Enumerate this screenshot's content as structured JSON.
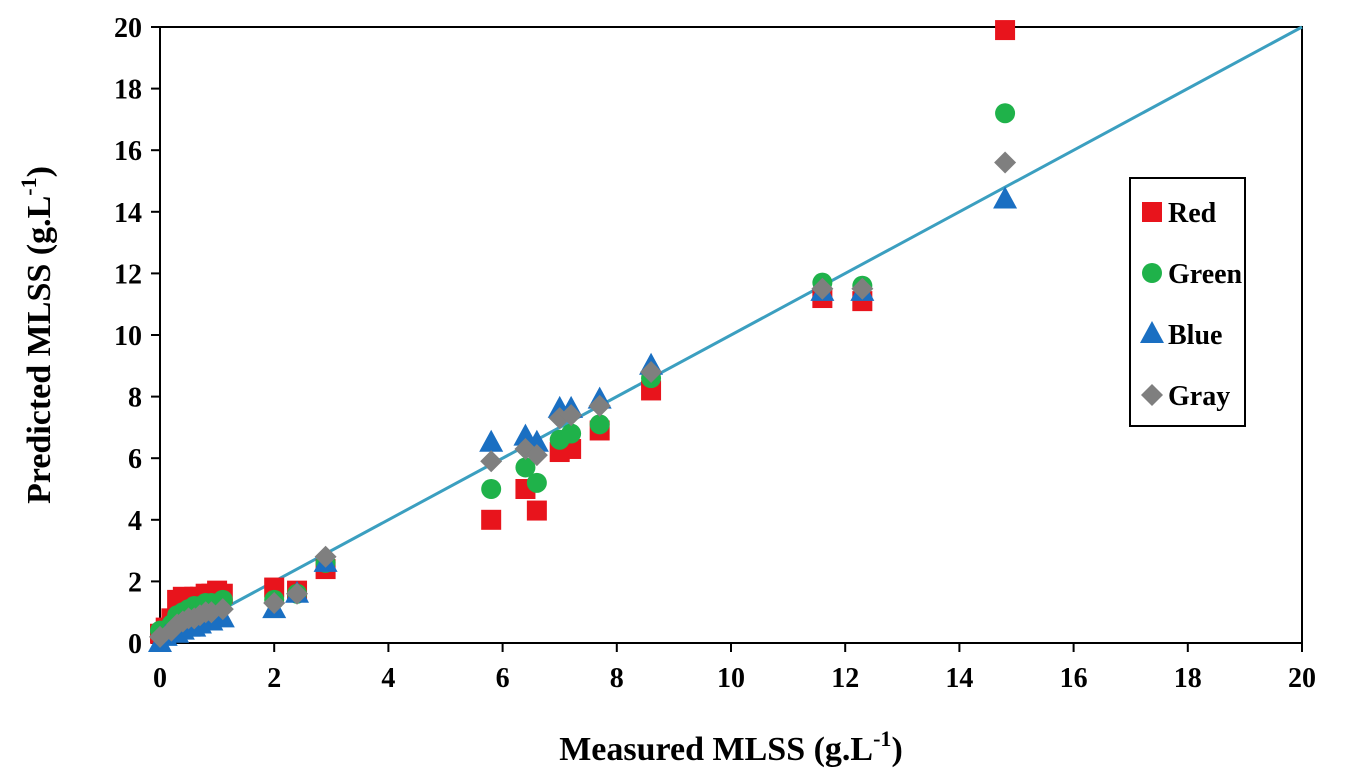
{
  "chart_data": {
    "type": "scatter",
    "title": "",
    "xlabel": "Measured MLSS (g.L",
    "ylabel": "Predicted MLSS (g.L",
    "unit_superscript": "-1",
    "unit_close": ")",
    "xlim": [
      0,
      20
    ],
    "ylim": [
      0,
      20
    ],
    "x_ticks": [
      0,
      2,
      4,
      6,
      8,
      10,
      12,
      14,
      16,
      18,
      20
    ],
    "y_ticks": [
      0,
      2,
      4,
      6,
      8,
      10,
      12,
      14,
      16,
      18,
      20
    ],
    "grid": false,
    "legend_position": "right",
    "reference_line": {
      "from": [
        0,
        0
      ],
      "to": [
        20,
        20
      ],
      "color": "#3b9fc0"
    },
    "series": [
      {
        "name": "Red",
        "marker": "square",
        "color": "#e8141c",
        "points": [
          [
            0.0,
            0.3
          ],
          [
            0.1,
            0.5
          ],
          [
            0.2,
            0.8
          ],
          [
            0.3,
            1.4
          ],
          [
            0.4,
            1.5
          ],
          [
            0.5,
            1.4
          ],
          [
            0.6,
            1.5
          ],
          [
            0.7,
            1.5
          ],
          [
            0.8,
            1.6
          ],
          [
            0.9,
            1.6
          ],
          [
            1.0,
            1.7
          ],
          [
            1.1,
            1.6
          ],
          [
            2.0,
            1.8
          ],
          [
            2.4,
            1.7
          ],
          [
            2.9,
            2.4
          ],
          [
            5.8,
            4.0
          ],
          [
            6.4,
            5.0
          ],
          [
            6.6,
            4.3
          ],
          [
            7.0,
            6.2
          ],
          [
            7.2,
            6.3
          ],
          [
            7.7,
            6.9
          ],
          [
            8.6,
            8.2
          ],
          [
            11.6,
            11.2
          ],
          [
            12.3,
            11.1
          ],
          [
            14.8,
            19.9
          ]
        ]
      },
      {
        "name": "Green",
        "marker": "circle",
        "color": "#1fb24a",
        "points": [
          [
            0.0,
            0.4
          ],
          [
            0.2,
            0.6
          ],
          [
            0.3,
            0.9
          ],
          [
            0.4,
            1.0
          ],
          [
            0.5,
            1.1
          ],
          [
            0.6,
            1.2
          ],
          [
            0.7,
            1.2
          ],
          [
            0.8,
            1.3
          ],
          [
            0.9,
            1.3
          ],
          [
            1.1,
            1.4
          ],
          [
            2.0,
            1.4
          ],
          [
            2.4,
            1.6
          ],
          [
            2.9,
            2.6
          ],
          [
            5.8,
            5.0
          ],
          [
            6.4,
            5.7
          ],
          [
            6.6,
            5.2
          ],
          [
            7.0,
            6.6
          ],
          [
            7.2,
            6.8
          ],
          [
            7.7,
            7.1
          ],
          [
            8.6,
            8.6
          ],
          [
            11.6,
            11.7
          ],
          [
            12.3,
            11.6
          ],
          [
            14.8,
            17.2
          ]
        ]
      },
      {
        "name": "Blue",
        "marker": "triangle",
        "color": "#1a6fc2",
        "points": [
          [
            0.0,
            0.0
          ],
          [
            0.1,
            0.2
          ],
          [
            0.3,
            0.3
          ],
          [
            0.4,
            0.4
          ],
          [
            0.5,
            0.5
          ],
          [
            0.6,
            0.5
          ],
          [
            0.7,
            0.6
          ],
          [
            0.8,
            0.7
          ],
          [
            0.9,
            0.7
          ],
          [
            1.1,
            0.8
          ],
          [
            2.0,
            1.1
          ],
          [
            2.4,
            1.6
          ],
          [
            2.9,
            2.6
          ],
          [
            5.8,
            6.5
          ],
          [
            6.4,
            6.7
          ],
          [
            6.6,
            6.5
          ],
          [
            7.0,
            7.6
          ],
          [
            7.2,
            7.6
          ],
          [
            7.7,
            7.9
          ],
          [
            8.6,
            9.0
          ],
          [
            11.6,
            11.4
          ],
          [
            12.3,
            11.4
          ],
          [
            14.8,
            14.4
          ]
        ]
      },
      {
        "name": "Gray",
        "marker": "diamond",
        "color": "#7f7f7f",
        "points": [
          [
            0.0,
            0.2
          ],
          [
            0.2,
            0.4
          ],
          [
            0.3,
            0.6
          ],
          [
            0.4,
            0.7
          ],
          [
            0.5,
            0.8
          ],
          [
            0.6,
            0.8
          ],
          [
            0.7,
            0.9
          ],
          [
            0.8,
            1.0
          ],
          [
            0.9,
            1.0
          ],
          [
            1.1,
            1.1
          ],
          [
            2.0,
            1.3
          ],
          [
            2.4,
            1.6
          ],
          [
            2.9,
            2.8
          ],
          [
            5.8,
            5.9
          ],
          [
            6.4,
            6.3
          ],
          [
            6.6,
            6.1
          ],
          [
            7.0,
            7.3
          ],
          [
            7.2,
            7.4
          ],
          [
            7.7,
            7.7
          ],
          [
            8.6,
            8.8
          ],
          [
            11.6,
            11.5
          ],
          [
            12.3,
            11.5
          ],
          [
            14.8,
            15.6
          ]
        ]
      }
    ]
  }
}
